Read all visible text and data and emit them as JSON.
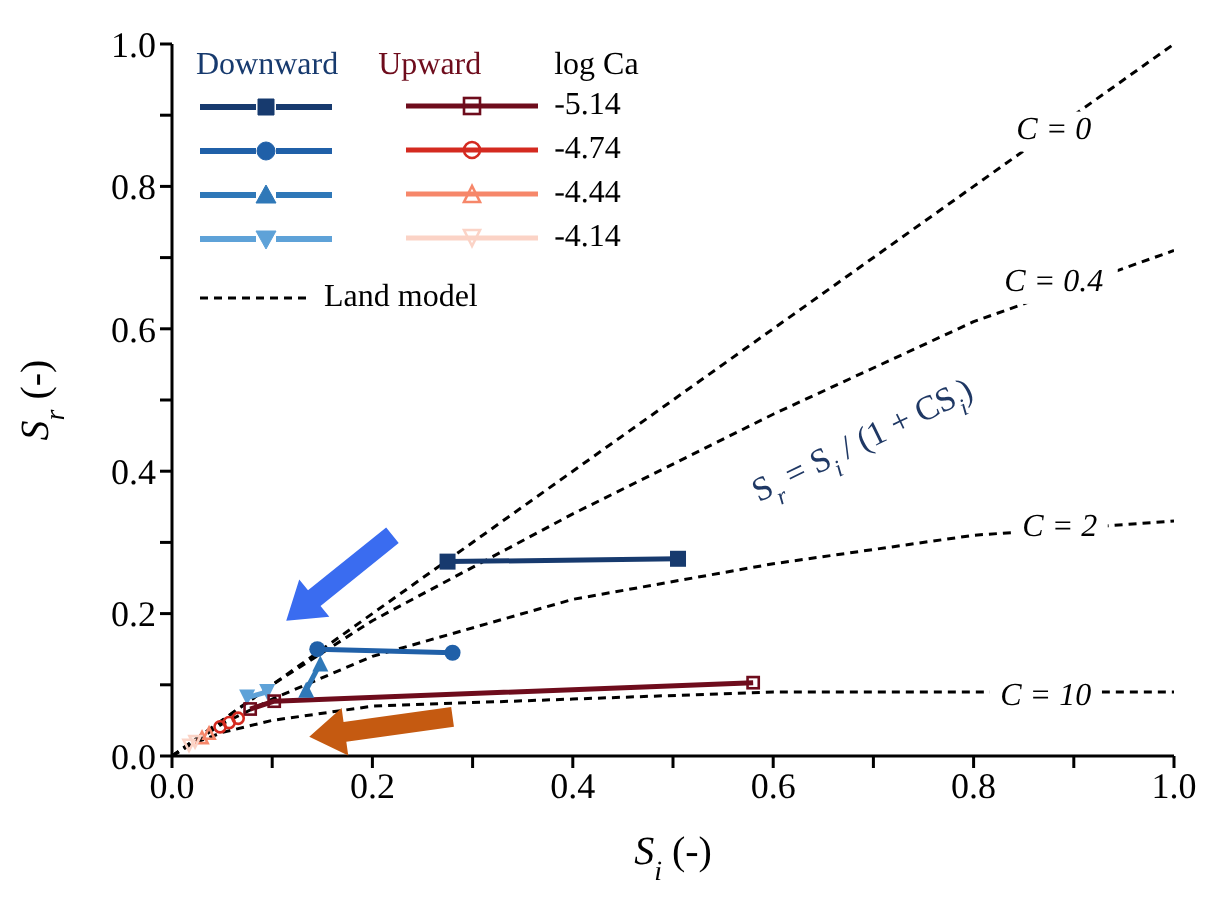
{
  "chart_data": {
    "type": "line",
    "xlabel": "S$_{i}$ (-)",
    "ylabel": "S$_{r}$ (-)",
    "legend_title": "log Ca",
    "legend": "top left",
    "grid": false,
    "xlim": [
      0,
      1
    ],
    "ylim": [
      0,
      1
    ],
    "xticks": [
      {
        "value": 0,
        "label": "0.0"
      },
      {
        "value": 0.1,
        "label": null
      },
      {
        "value": 0.2,
        "label": "0.2"
      },
      {
        "value": 0.3,
        "label": null
      },
      {
        "value": 0.4,
        "label": "0.4"
      },
      {
        "value": 0.5,
        "label": null
      },
      {
        "value": 0.6,
        "label": "0.6"
      },
      {
        "value": 0.7,
        "label": null
      },
      {
        "value": 0.8,
        "label": "0.8"
      },
      {
        "value": 0.9,
        "label": null
      },
      {
        "value": 1,
        "label": "1.0"
      }
    ],
    "yticks": [
      {
        "value": 0,
        "label": "0.0"
      },
      {
        "value": 0.1,
        "label": null
      },
      {
        "value": 0.2,
        "label": "0.2"
      },
      {
        "value": 0.3,
        "label": null
      },
      {
        "value": 0.4,
        "label": "0.4"
      },
      {
        "value": 0.5,
        "label": null
      },
      {
        "value": 0.6,
        "label": "0.6"
      },
      {
        "value": 0.7,
        "label": null
      },
      {
        "value": 0.8,
        "label": "0.8"
      },
      {
        "value": 0.9,
        "label": null
      },
      {
        "value": 1,
        "label": "1.0"
      }
    ],
    "annotations": [
      "Downward",
      "Upward",
      "S$_{r}$ = S$_{i}$ / (1 + CS$_{i}$)",
      {
        "text": "C = 0",
        "x": 0.88,
        "y": 0.877
      },
      {
        "text": "C = 0.4",
        "x": 0.88,
        "y": 0.663
      },
      {
        "text": "C = 2",
        "x": 0.886,
        "y": 0.32
      },
      {
        "text": "C = 10",
        "x": 0.872,
        "y": 0.082
      }
    ],
    "series": [
      {
        "color": "#173a6e",
        "marker": "square",
        "x": [
          0.275,
          0.505
        ],
        "values": [
          0.273,
          0.277
        ]
      },
      {
        "color": "#2060a8",
        "marker": "circle",
        "x": [
          0.145,
          0.28
        ],
        "values": [
          0.15,
          0.145
        ]
      },
      {
        "color": "#2f78b8",
        "marker": "triangle",
        "x": [
          0.134,
          0.148
        ],
        "values": [
          0.093,
          0.13
        ]
      },
      {
        "color": "#5ea2d8",
        "marker": "triangle-down",
        "x": [
          0.075,
          0.095
        ],
        "values": [
          0.082,
          0.09
        ]
      },
      {
        "name": "-5.14",
        "color": "#6e0c1c",
        "marker": "square",
        "x": [
          0.078,
          0.102,
          0.58
        ],
        "values": [
          0.066,
          0.077,
          0.103
        ]
      },
      {
        "name": "-4.74",
        "type": "scatter",
        "color": "#d42a20",
        "marker": "circle",
        "x": [
          0.048,
          0.057,
          0.066
        ],
        "values": [
          0.041,
          0.047,
          0.053
        ]
      },
      {
        "name": "-4.44",
        "type": "scatter",
        "color": "#f6876a",
        "marker": "triangle",
        "x": [
          0.03,
          0.037
        ],
        "values": [
          0.026,
          0.032
        ]
      },
      {
        "name": "-4.14",
        "type": "scatter",
        "color": "#fbd3c6",
        "marker": "triangle-down",
        "x": [
          0.017,
          0.023
        ],
        "values": [
          0.015,
          0.02
        ]
      },
      {
        "name": "Land model",
        "color": "#000000",
        "marker": "none",
        "line_style": "dashed",
        "x": [
          0,
          0.2,
          0.4,
          0.6,
          0.8,
          1
        ],
        "values": [
          0,
          0.2,
          0.4,
          0.6,
          0.8,
          1
        ]
      },
      {
        "color": "#000000",
        "marker": "none",
        "line_style": "dashed",
        "x": [
          0,
          0.1,
          0.2,
          0.4,
          0.6,
          0.8,
          1
        ],
        "values": [
          0,
          0.1,
          0.19,
          0.34,
          0.48,
          0.61,
          0.71
        ]
      },
      {
        "color": "#000000",
        "marker": "none",
        "line_style": "dashed",
        "x": [
          0,
          0.05,
          0.1,
          0.2,
          0.4,
          0.6,
          0.8,
          1
        ],
        "values": [
          0,
          0.045,
          0.08,
          0.14,
          0.22,
          0.27,
          0.31,
          0.33
        ]
      },
      {
        "color": "#000000",
        "marker": "none",
        "line_style": "dashed",
        "x": [
          0,
          0.02,
          0.05,
          0.1,
          0.2,
          0.4,
          0.6,
          0.8,
          1
        ],
        "values": [
          0,
          0.017,
          0.033,
          0.05,
          0.07,
          0.08,
          0.09,
          0.09,
          0.09
        ]
      }
    ]
  }
}
